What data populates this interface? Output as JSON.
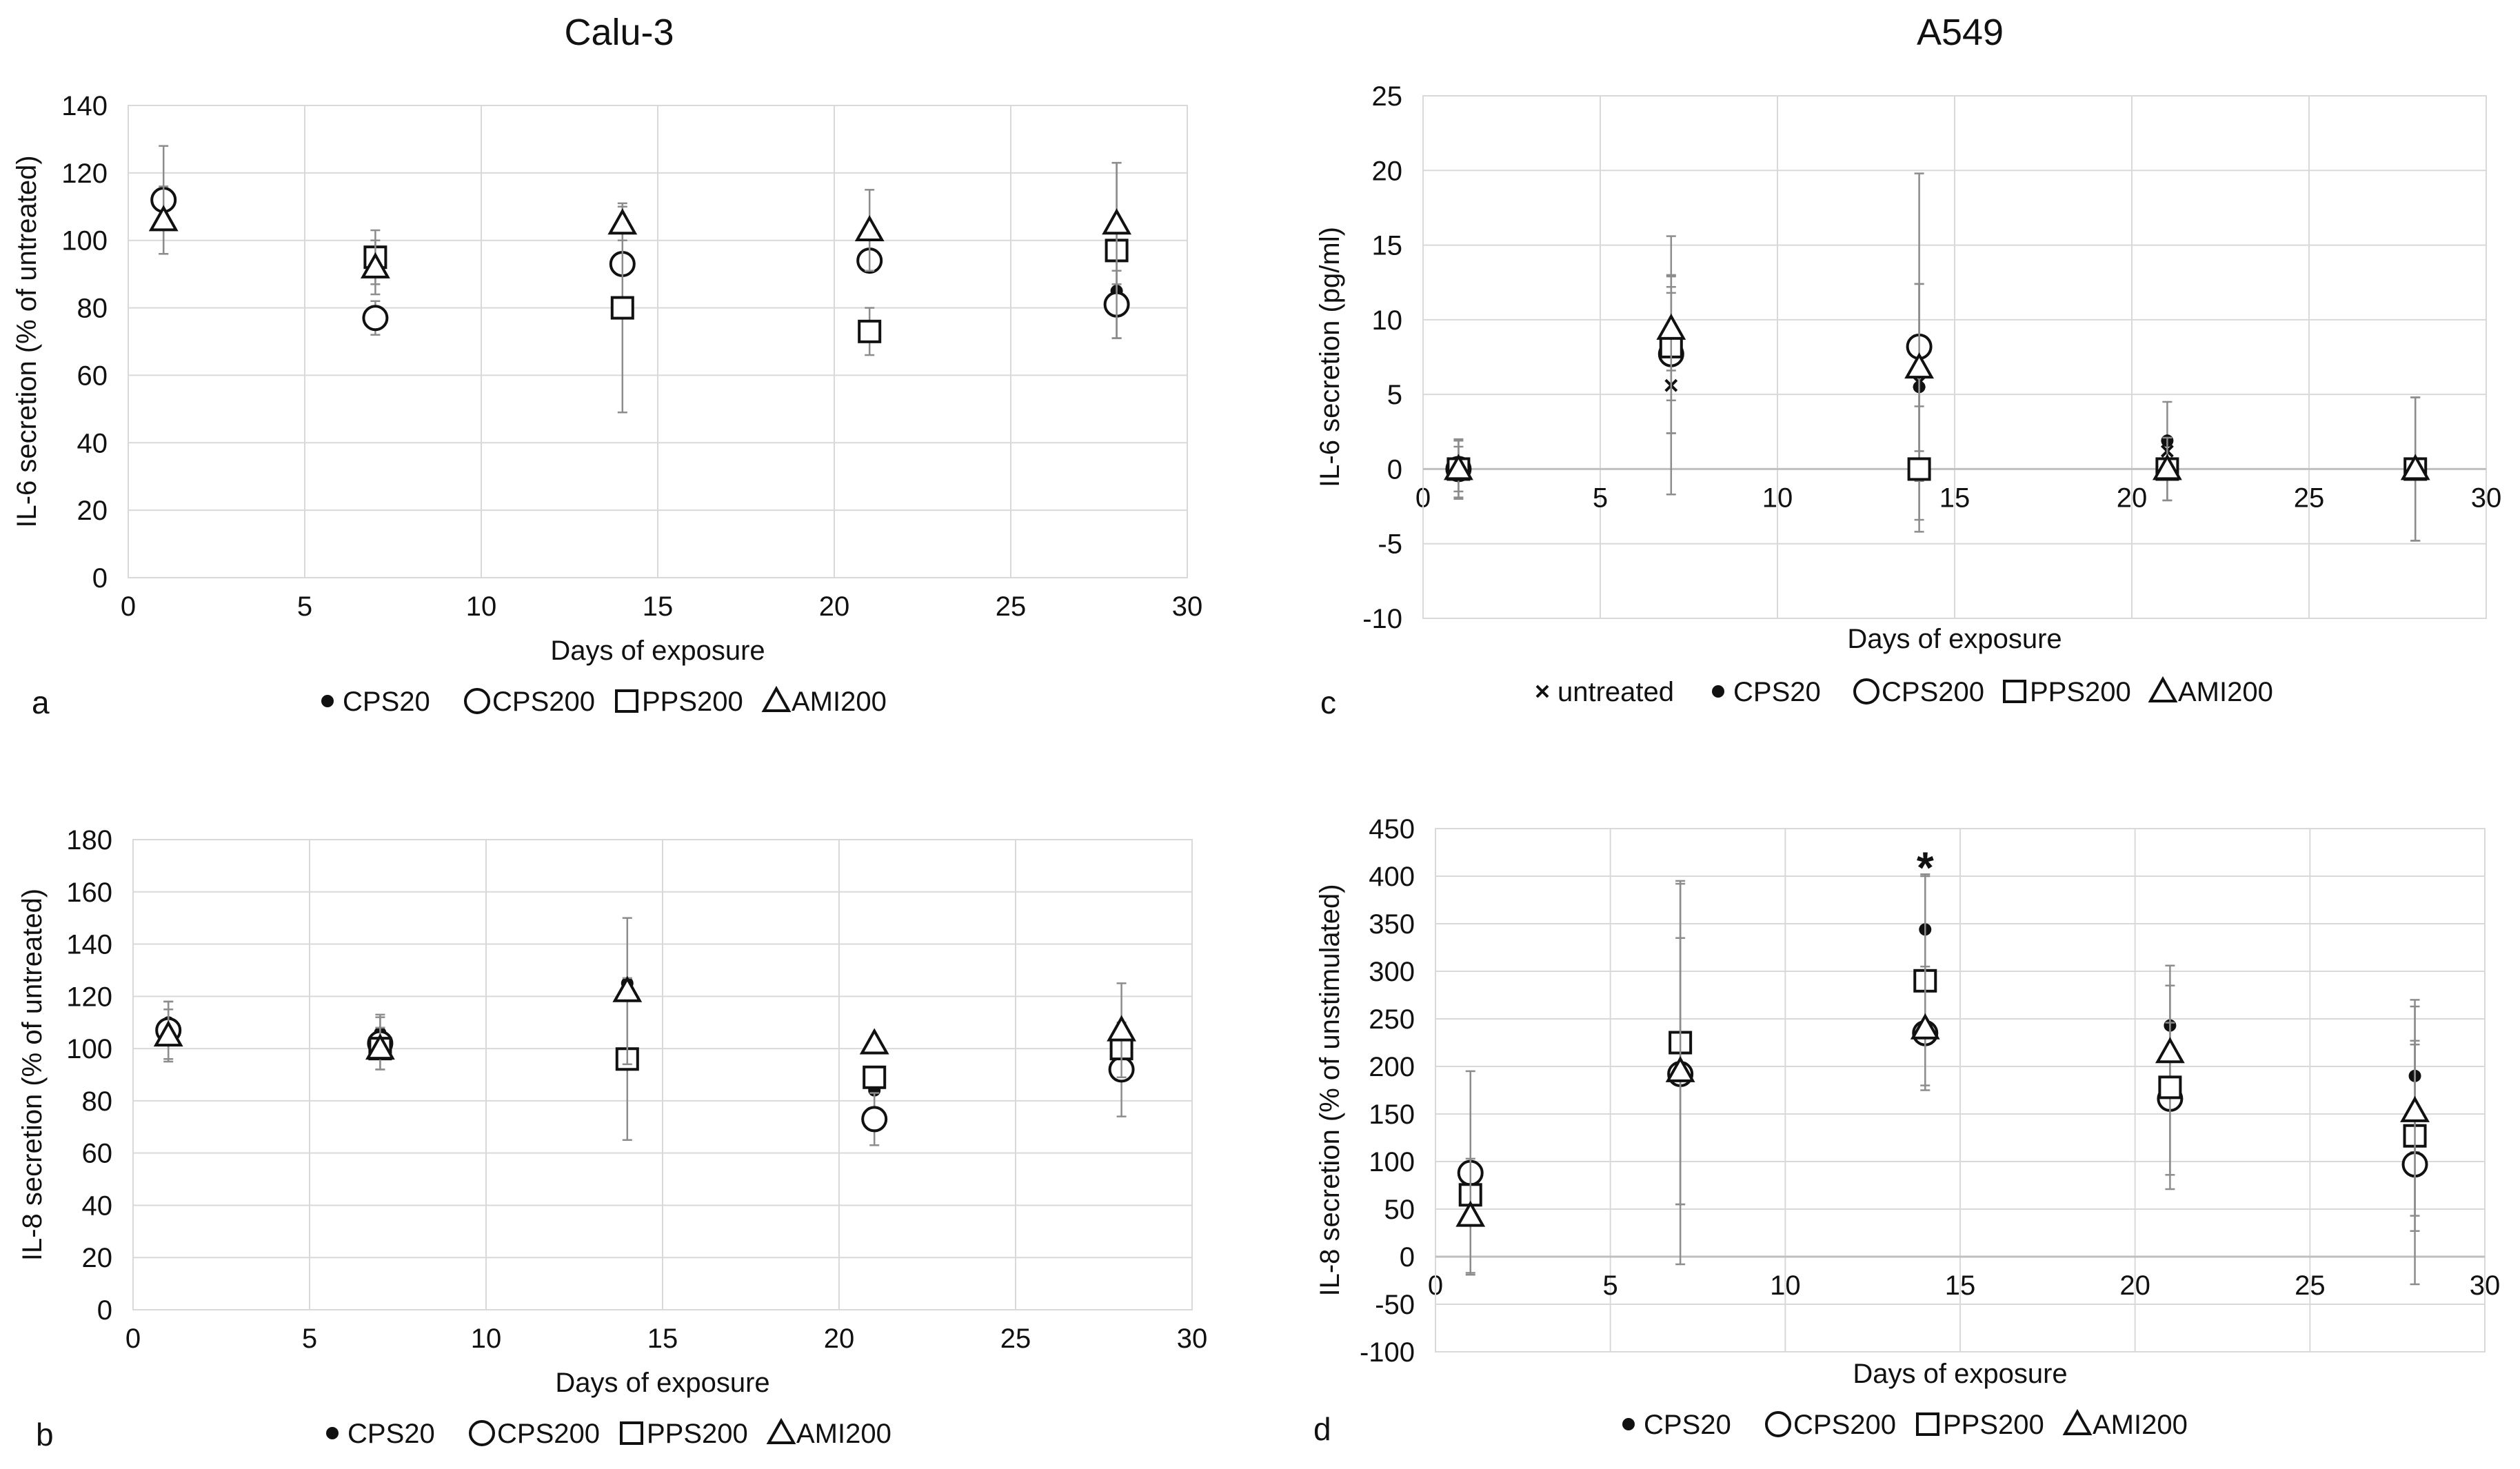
{
  "column_titles": {
    "left": "Calu-3",
    "right": "A549"
  },
  "series_styles": {
    "untreated": {
      "marker": "cross",
      "glyph": "×"
    },
    "CPS20": {
      "marker": "dot",
      "glyph": "●"
    },
    "CPS200": {
      "marker": "circle",
      "glyph": "○"
    },
    "PPS200": {
      "marker": "square",
      "glyph": "□"
    },
    "AMI200": {
      "marker": "triangle",
      "glyph": "△"
    }
  },
  "colors": {
    "marker": "#111111",
    "gridline": "#d9d9d9",
    "errorbar": "#8c8c8c",
    "background": "#ffffff"
  },
  "chart_data": [
    {
      "panel": "a",
      "type": "scatter",
      "cell_line": "Calu-3",
      "xlabel": "Days of exposure",
      "ylabel": "IL-6 secretion (% of untreated)",
      "xlim": [
        0,
        30
      ],
      "ylim": [
        0,
        140
      ],
      "xticks": [
        0,
        5,
        10,
        15,
        20,
        25,
        30
      ],
      "yticks": [
        0,
        20,
        40,
        60,
        80,
        100,
        120,
        140
      ],
      "legend": [
        "CPS20",
        "CPS200",
        "PPS200",
        "AMI200"
      ],
      "series": [
        {
          "name": "CPS20",
          "x": [
            28
          ],
          "y": [
            85
          ],
          "err": [
            14
          ]
        },
        {
          "name": "CPS200",
          "x": [
            1,
            7,
            14,
            21,
            28
          ],
          "y": [
            112,
            77,
            93,
            94,
            81
          ],
          "err": [
            16,
            5,
            0,
            0,
            10
          ]
        },
        {
          "name": "PPS200",
          "x": [
            7,
            14,
            21,
            28
          ],
          "y": [
            95,
            80,
            73,
            97
          ],
          "err": [
            8,
            31,
            7,
            26
          ]
        },
        {
          "name": "AMI200",
          "x": [
            1,
            7,
            14,
            21,
            28
          ],
          "y": [
            106,
            92,
            105,
            103,
            105
          ],
          "err": [
            10,
            8,
            5,
            12,
            18
          ]
        }
      ],
      "annotations": []
    },
    {
      "panel": "b",
      "type": "scatter",
      "cell_line": "Calu-3",
      "xlabel": "Days of exposure",
      "ylabel": "IL-8 secretion (% of untreated)",
      "xlim": [
        0,
        30
      ],
      "ylim": [
        0,
        180
      ],
      "xticks": [
        0,
        5,
        10,
        15,
        20,
        25,
        30
      ],
      "yticks": [
        0,
        20,
        40,
        60,
        80,
        100,
        120,
        140,
        160,
        180
      ],
      "legend": [
        "CPS20",
        "CPS200",
        "PPS200",
        "AMI200"
      ],
      "series": [
        {
          "name": "CPS20",
          "x": [
            1,
            7,
            14,
            21
          ],
          "y": [
            110,
            106,
            125,
            84
          ],
          "err": [
            8,
            7,
            0,
            0
          ]
        },
        {
          "name": "CPS200",
          "x": [
            1,
            7,
            21,
            28
          ],
          "y": [
            107,
            102,
            73,
            92
          ],
          "err": [
            11,
            10,
            10,
            18
          ]
        },
        {
          "name": "PPS200",
          "x": [
            7,
            14,
            21,
            28
          ],
          "y": [
            100,
            96,
            89,
            100
          ],
          "err": [
            0,
            31,
            0,
            0
          ]
        },
        {
          "name": "AMI200",
          "x": [
            1,
            7,
            14,
            21,
            28
          ],
          "y": [
            105,
            100,
            122,
            102,
            107
          ],
          "err": [
            10,
            8,
            28,
            0,
            18
          ]
        }
      ],
      "annotations": []
    },
    {
      "panel": "c",
      "type": "scatter",
      "cell_line": "A549",
      "xlabel": "Days of exposure",
      "ylabel": "IL-6 secretion (pg/ml)",
      "xlim": [
        0,
        30
      ],
      "ylim": [
        -10,
        25
      ],
      "xticks": [
        0,
        5,
        10,
        15,
        20,
        25,
        30
      ],
      "yticks": [
        -10,
        -5,
        0,
        5,
        10,
        15,
        20,
        25
      ],
      "legend": [
        "untreated",
        "CPS20",
        "CPS200",
        "PPS200",
        "AMI200"
      ],
      "series": [
        {
          "name": "untreated",
          "x": [
            1,
            7,
            14,
            21,
            28
          ],
          "y": [
            0,
            5.6,
            5.8,
            1.2,
            0
          ],
          "err": [
            2,
            7.3,
            6.6,
            3.3,
            4.8
          ]
        },
        {
          "name": "CPS20",
          "x": [
            7,
            14,
            21
          ],
          "y": [
            9,
            5.5,
            1.9
          ],
          "err": [
            6.6,
            0,
            0
          ]
        },
        {
          "name": "CPS200",
          "x": [
            1,
            7,
            14
          ],
          "y": [
            0,
            7.7,
            8.2
          ],
          "err": [
            1.9,
            5.3,
            11.6
          ]
        },
        {
          "name": "PPS200",
          "x": [
            1,
            7,
            14,
            21,
            28
          ],
          "y": [
            0,
            8.2,
            0,
            0,
            0
          ],
          "err": [
            1.5,
            3.6,
            4.2,
            2.1,
            4.8
          ]
        },
        {
          "name": "AMI200",
          "x": [
            1,
            7,
            14,
            21,
            28
          ],
          "y": [
            0,
            9.4,
            6.8,
            0,
            0
          ],
          "err": [
            0,
            2.8,
            5.6,
            0,
            0
          ]
        }
      ],
      "annotations": []
    },
    {
      "panel": "d",
      "type": "scatter",
      "cell_line": "A549",
      "xlabel": "Days of exposure",
      "ylabel": "IL-8 secretion (% of unstimulated)",
      "xlim": [
        0,
        30
      ],
      "ylim": [
        -100,
        450
      ],
      "xticks": [
        0,
        5,
        10,
        15,
        20,
        25,
        30
      ],
      "yticks": [
        -100,
        -50,
        0,
        50,
        100,
        150,
        200,
        250,
        300,
        350,
        400,
        450
      ],
      "legend": [
        "CPS20",
        "CPS200",
        "PPS200",
        "AMI200"
      ],
      "series": [
        {
          "name": "CPS20",
          "x": [
            14,
            21,
            28
          ],
          "y": [
            344,
            243,
            190
          ],
          "err": [
            58,
            63,
            80
          ]
        },
        {
          "name": "CPS200",
          "x": [
            1,
            7,
            14,
            21,
            28
          ],
          "y": [
            88,
            192,
            235,
            166,
            97
          ],
          "err": [
            107,
            200,
            0,
            80,
            126
          ]
        },
        {
          "name": "PPS200",
          "x": [
            1,
            7,
            14,
            21,
            28
          ],
          "y": [
            65,
            225,
            290,
            178,
            127
          ],
          "err": [
            0,
            170,
            110,
            107,
            100
          ]
        },
        {
          "name": "AMI200",
          "x": [
            1,
            7,
            14,
            21,
            28
          ],
          "y": [
            43,
            195,
            240,
            215,
            153
          ],
          "err": [
            60,
            140,
            65,
            0,
            110
          ]
        }
      ],
      "annotations": [
        {
          "text": "*",
          "x": 14,
          "y": 415
        }
      ]
    }
  ]
}
